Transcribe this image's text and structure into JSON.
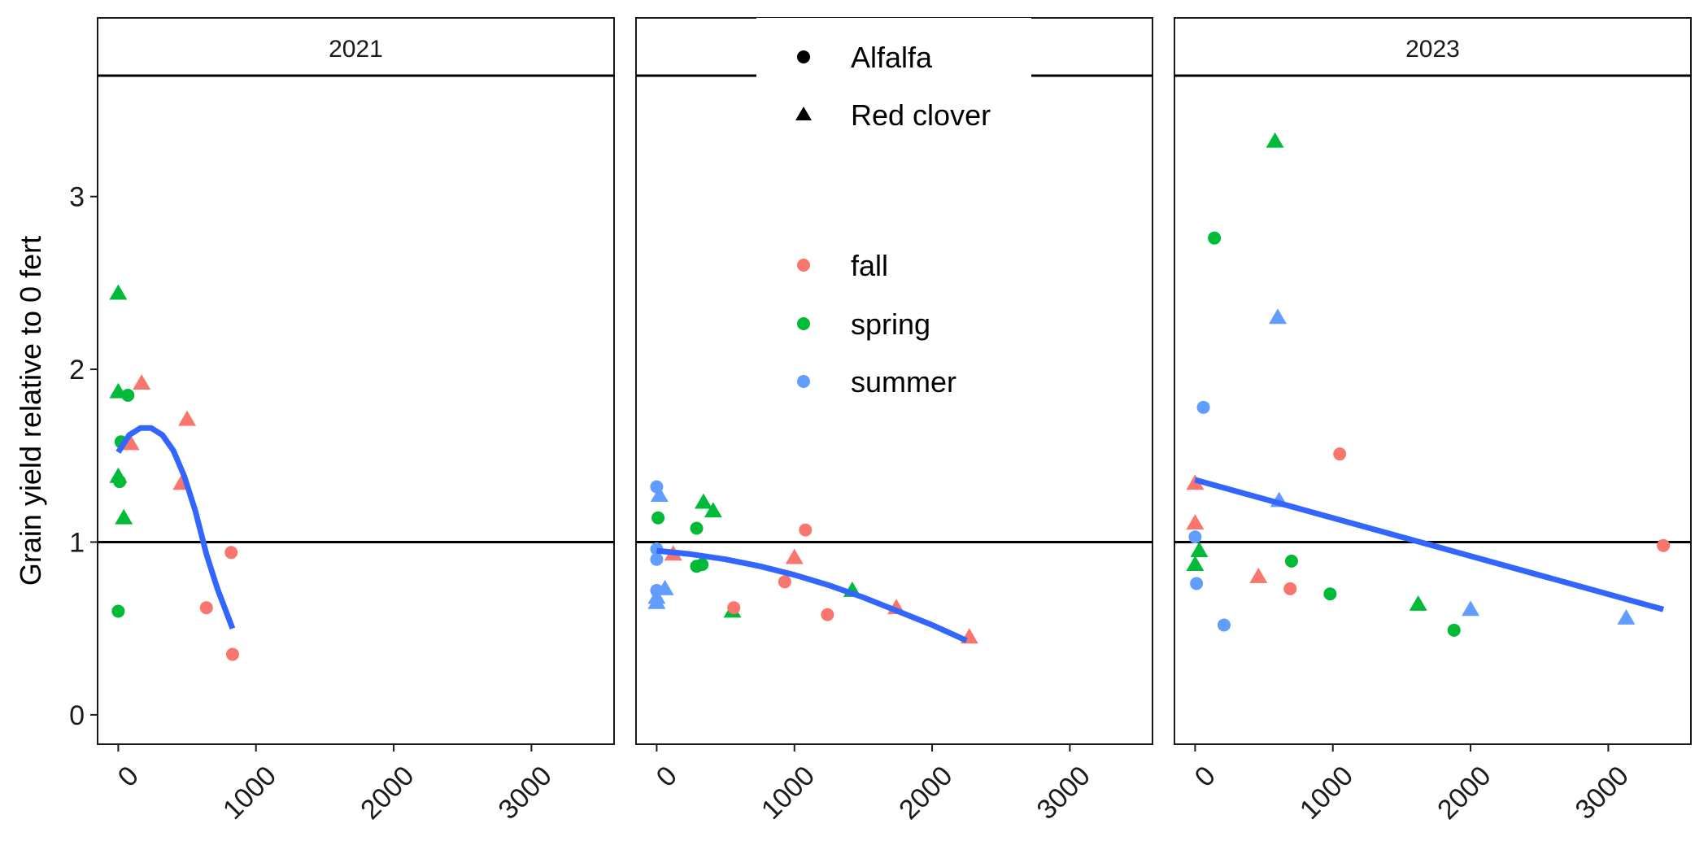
{
  "chart_data": {
    "type": "scatter",
    "title": "",
    "xlabel": "",
    "ylabel": "Grain yield relative to 0 fert",
    "xlim": [
      -150,
      3600
    ],
    "ylim": [
      -0.17,
      3.7
    ],
    "x_ticks": [
      0,
      1000,
      2000,
      3000
    ],
    "y_ticks": [
      0,
      1,
      2,
      3
    ],
    "reference_line_y": 1,
    "grid": false,
    "legend_placement": "top-center",
    "shape_legend": [
      {
        "label": "Alfalfa",
        "shape": "circle"
      },
      {
        "label": "Red clover",
        "shape": "triangle"
      }
    ],
    "color_legend": [
      {
        "label": "fall",
        "color": "#F8766D"
      },
      {
        "label": "spring",
        "color": "#00BA38"
      },
      {
        "label": "summer",
        "color": "#619CFF"
      }
    ],
    "trend_color": "#3366FF",
    "panels": [
      {
        "label": "2021",
        "points": [
          {
            "x": 0,
            "y": 2.44,
            "shape": "triangle",
            "group": "spring"
          },
          {
            "x": 0,
            "y": 1.87,
            "shape": "triangle",
            "group": "spring"
          },
          {
            "x": 70,
            "y": 1.85,
            "shape": "circle",
            "group": "spring"
          },
          {
            "x": 20,
            "y": 1.58,
            "shape": "circle",
            "group": "spring"
          },
          {
            "x": 0,
            "y": 1.38,
            "shape": "triangle",
            "group": "spring"
          },
          {
            "x": 10,
            "y": 1.35,
            "shape": "circle",
            "group": "spring"
          },
          {
            "x": 40,
            "y": 1.14,
            "shape": "triangle",
            "group": "spring"
          },
          {
            "x": 0,
            "y": 0.6,
            "shape": "circle",
            "group": "spring"
          },
          {
            "x": 170,
            "y": 1.92,
            "shape": "triangle",
            "group": "fall"
          },
          {
            "x": 90,
            "y": 1.57,
            "shape": "triangle",
            "group": "fall"
          },
          {
            "x": 500,
            "y": 1.71,
            "shape": "triangle",
            "group": "fall"
          },
          {
            "x": 460,
            "y": 1.34,
            "shape": "triangle",
            "group": "fall"
          },
          {
            "x": 820,
            "y": 0.94,
            "shape": "circle",
            "group": "fall"
          },
          {
            "x": 640,
            "y": 0.62,
            "shape": "circle",
            "group": "fall"
          },
          {
            "x": 830,
            "y": 0.35,
            "shape": "circle",
            "group": "fall"
          }
        ],
        "trend": [
          {
            "x": 0,
            "y": 1.52
          },
          {
            "x": 80,
            "y": 1.62
          },
          {
            "x": 160,
            "y": 1.66
          },
          {
            "x": 240,
            "y": 1.66
          },
          {
            "x": 320,
            "y": 1.62
          },
          {
            "x": 400,
            "y": 1.53
          },
          {
            "x": 480,
            "y": 1.38
          },
          {
            "x": 560,
            "y": 1.18
          },
          {
            "x": 640,
            "y": 0.93
          },
          {
            "x": 720,
            "y": 0.73
          },
          {
            "x": 830,
            "y": 0.5
          }
        ]
      },
      {
        "label": "",
        "points": [
          {
            "x": 0,
            "y": 1.32,
            "shape": "circle",
            "group": "summer"
          },
          {
            "x": 20,
            "y": 1.27,
            "shape": "triangle",
            "group": "summer"
          },
          {
            "x": 0,
            "y": 0.96,
            "shape": "circle",
            "group": "summer"
          },
          {
            "x": 0,
            "y": 0.9,
            "shape": "circle",
            "group": "summer"
          },
          {
            "x": 0,
            "y": 0.72,
            "shape": "circle",
            "group": "summer"
          },
          {
            "x": 60,
            "y": 0.73,
            "shape": "triangle",
            "group": "summer"
          },
          {
            "x": 0,
            "y": 0.68,
            "shape": "triangle",
            "group": "summer"
          },
          {
            "x": 0,
            "y": 0.65,
            "shape": "triangle",
            "group": "summer"
          },
          {
            "x": 10,
            "y": 1.14,
            "shape": "circle",
            "group": "spring"
          },
          {
            "x": 340,
            "y": 1.23,
            "shape": "triangle",
            "group": "spring"
          },
          {
            "x": 410,
            "y": 1.18,
            "shape": "triangle",
            "group": "spring"
          },
          {
            "x": 290,
            "y": 1.08,
            "shape": "circle",
            "group": "spring"
          },
          {
            "x": 290,
            "y": 0.86,
            "shape": "circle",
            "group": "spring"
          },
          {
            "x": 330,
            "y": 0.87,
            "shape": "circle",
            "group": "spring"
          },
          {
            "x": 550,
            "y": 0.6,
            "shape": "triangle",
            "group": "spring"
          },
          {
            "x": 1420,
            "y": 0.72,
            "shape": "triangle",
            "group": "spring"
          },
          {
            "x": 120,
            "y": 0.93,
            "shape": "triangle",
            "group": "fall"
          },
          {
            "x": 1080,
            "y": 1.07,
            "shape": "circle",
            "group": "fall"
          },
          {
            "x": 1000,
            "y": 0.91,
            "shape": "triangle",
            "group": "fall"
          },
          {
            "x": 930,
            "y": 0.77,
            "shape": "circle",
            "group": "fall"
          },
          {
            "x": 560,
            "y": 0.62,
            "shape": "circle",
            "group": "fall"
          },
          {
            "x": 1240,
            "y": 0.58,
            "shape": "circle",
            "group": "fall"
          },
          {
            "x": 1740,
            "y": 0.62,
            "shape": "triangle",
            "group": "fall"
          },
          {
            "x": 2270,
            "y": 0.45,
            "shape": "triangle",
            "group": "fall"
          }
        ],
        "trend": [
          {
            "x": 0,
            "y": 0.95
          },
          {
            "x": 250,
            "y": 0.93
          },
          {
            "x": 500,
            "y": 0.9
          },
          {
            "x": 750,
            "y": 0.86
          },
          {
            "x": 1000,
            "y": 0.81
          },
          {
            "x": 1250,
            "y": 0.75
          },
          {
            "x": 1500,
            "y": 0.68
          },
          {
            "x": 1750,
            "y": 0.6
          },
          {
            "x": 2000,
            "y": 0.52
          },
          {
            "x": 2250,
            "y": 0.43
          }
        ]
      },
      {
        "label": "2023",
        "points": [
          {
            "x": 580,
            "y": 3.32,
            "shape": "triangle",
            "group": "spring"
          },
          {
            "x": 140,
            "y": 2.76,
            "shape": "circle",
            "group": "spring"
          },
          {
            "x": 700,
            "y": 0.89,
            "shape": "circle",
            "group": "spring"
          },
          {
            "x": 980,
            "y": 0.7,
            "shape": "circle",
            "group": "spring"
          },
          {
            "x": 1620,
            "y": 0.64,
            "shape": "triangle",
            "group": "spring"
          },
          {
            "x": 1880,
            "y": 0.49,
            "shape": "circle",
            "group": "spring"
          },
          {
            "x": 30,
            "y": 0.95,
            "shape": "triangle",
            "group": "spring"
          },
          {
            "x": 0,
            "y": 0.87,
            "shape": "triangle",
            "group": "spring"
          },
          {
            "x": 600,
            "y": 2.3,
            "shape": "triangle",
            "group": "summer"
          },
          {
            "x": 60,
            "y": 1.78,
            "shape": "circle",
            "group": "summer"
          },
          {
            "x": 610,
            "y": 1.24,
            "shape": "triangle",
            "group": "summer"
          },
          {
            "x": 0,
            "y": 1.03,
            "shape": "circle",
            "group": "summer"
          },
          {
            "x": 10,
            "y": 0.76,
            "shape": "circle",
            "group": "summer"
          },
          {
            "x": 210,
            "y": 0.52,
            "shape": "circle",
            "group": "summer"
          },
          {
            "x": 2000,
            "y": 0.61,
            "shape": "triangle",
            "group": "summer"
          },
          {
            "x": 3130,
            "y": 0.56,
            "shape": "triangle",
            "group": "summer"
          },
          {
            "x": 1050,
            "y": 1.51,
            "shape": "circle",
            "group": "fall"
          },
          {
            "x": 0,
            "y": 1.34,
            "shape": "triangle",
            "group": "fall"
          },
          {
            "x": 0,
            "y": 1.11,
            "shape": "triangle",
            "group": "fall"
          },
          {
            "x": 460,
            "y": 0.8,
            "shape": "triangle",
            "group": "fall"
          },
          {
            "x": 690,
            "y": 0.73,
            "shape": "circle",
            "group": "fall"
          },
          {
            "x": 3400,
            "y": 0.98,
            "shape": "circle",
            "group": "fall"
          }
        ],
        "trend": [
          {
            "x": 0,
            "y": 1.36
          },
          {
            "x": 3400,
            "y": 0.61
          }
        ]
      }
    ]
  }
}
